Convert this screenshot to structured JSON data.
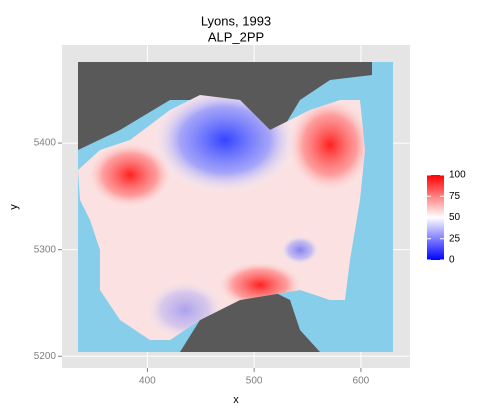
{
  "chart_data": {
    "type": "raster",
    "title": "Lyons, 1993",
    "subtitle": "ALP_2PP",
    "x_label": "x",
    "y_label": "y",
    "xlim": [
      320,
      646
    ],
    "ylim": [
      5189,
      5492
    ],
    "xticks": [
      400,
      500,
      600
    ],
    "yticks": [
      5200,
      5300,
      5400
    ],
    "grid": true,
    "colorbar": {
      "lim": [
        0,
        100
      ],
      "ticks": [
        0,
        25,
        50,
        75,
        100
      ],
      "colors": [
        "#0000ff",
        "#ffffff",
        "#ff0000"
      ]
    }
  }
}
